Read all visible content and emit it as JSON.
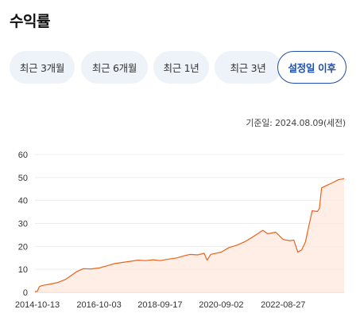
{
  "header": {
    "title": "수익률"
  },
  "period_tabs": [
    {
      "label": "최근 3개월",
      "active": false
    },
    {
      "label": "최근 6개월",
      "active": false
    },
    {
      "label": "최근 1년",
      "active": false
    },
    {
      "label": "최근 3년",
      "active": false
    },
    {
      "label": "설정일 이후",
      "active": true
    }
  ],
  "as_of": "기준일: 2024.08.09(세전)",
  "colors": {
    "line": "#e8641b",
    "fill": "#fde8dd",
    "accent": "#1f4fa8",
    "tab_bg": "#eef3f9"
  },
  "chart_data": {
    "type": "area",
    "title": "",
    "xlabel": "",
    "ylabel": "",
    "ylim": [
      0,
      60
    ],
    "yticks": [
      0,
      10,
      20,
      30,
      40,
      50,
      60
    ],
    "xtick_labels": [
      "2014-10-13",
      "2016-10-03",
      "2018-09-17",
      "2020-09-02",
      "2022-08-27"
    ],
    "grid": true,
    "series": [
      {
        "x": [
          "2014-09-15",
          "2014-10-13",
          "2014-11-05",
          "2014-12-15",
          "2015-03-01",
          "2015-06-01",
          "2015-09-01",
          "2015-11-01",
          "2016-01-15",
          "2016-04-01",
          "2016-07-01",
          "2016-10-03",
          "2017-01-01",
          "2017-04-01",
          "2017-07-01",
          "2017-10-01",
          "2018-01-01",
          "2018-04-01",
          "2018-07-01",
          "2018-09-17",
          "2019-01-01",
          "2019-04-01",
          "2019-07-01",
          "2019-09-01",
          "2019-12-01",
          "2020-02-15",
          "2020-03-20",
          "2020-05-01",
          "2020-09-02",
          "2020-12-01",
          "2021-03-01",
          "2021-06-01",
          "2021-09-01",
          "2021-11-01",
          "2022-01-01",
          "2022-03-01",
          "2022-06-01",
          "2022-08-27",
          "2022-09-30",
          "2022-11-15",
          "2022-12-30",
          "2023-02-15",
          "2023-04-01",
          "2023-05-15",
          "2023-06-01",
          "2023-08-01",
          "2023-10-01",
          "2023-10-25",
          "2023-11-20",
          "2024-01-15",
          "2024-03-15",
          "2024-06-01",
          "2024-08-09"
        ],
        "values": [
          0.3,
          0.5,
          2.5,
          3.0,
          3.5,
          4.2,
          5.5,
          7.0,
          9.0,
          10.3,
          10.2,
          10.6,
          11.5,
          12.5,
          13.0,
          13.5,
          14.0,
          13.8,
          14.2,
          13.8,
          14.5,
          15.0,
          16.0,
          16.5,
          16.3,
          17.0,
          14.0,
          16.5,
          17.5,
          19.5,
          20.5,
          22.0,
          24.0,
          25.5,
          27.0,
          25.5,
          26.2,
          23.0,
          22.8,
          22.5,
          22.8,
          17.5,
          18.5,
          22.0,
          25.0,
          35.5,
          35.2,
          36.5,
          45.5,
          46.5,
          47.5,
          49.0,
          49.5
        ]
      }
    ]
  }
}
